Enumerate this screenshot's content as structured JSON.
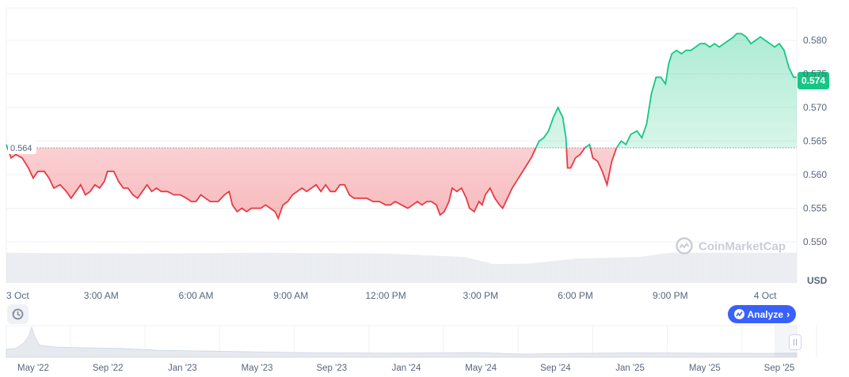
{
  "chart_data": {
    "type": "area",
    "currency": "USD",
    "watermark": "CoinMarketCap",
    "open_price": 0.564,
    "current_price": 0.574,
    "open_label": "0.564",
    "current_label": "0.574",
    "ylim": [
      0.5468,
      0.5816
    ],
    "y_ticks": [
      "0.580",
      "0.575",
      "0.570",
      "0.565",
      "0.560",
      "0.555",
      "0.550"
    ],
    "y_tick_values": [
      0.58,
      0.575,
      0.57,
      0.565,
      0.56,
      0.555,
      0.55
    ],
    "x_ticks": [
      "3 Oct",
      "3:00 AM",
      "6:00 AM",
      "9:00 AM",
      "12:00 PM",
      "3:00 PM",
      "6:00 PM",
      "9:00 PM",
      "4 Oct"
    ],
    "x_tick_hours": [
      0,
      3,
      6,
      9,
      12,
      15,
      18,
      21,
      24
    ],
    "x_range_hours": [
      0,
      25
    ],
    "colors": {
      "up": "#16c784",
      "down": "#ea3943",
      "accent": "#3861fb",
      "volume": "#e6e9ee"
    },
    "series": [
      {
        "values": [
          [
            0.0,
            0.5645
          ],
          [
            0.15,
            0.5625
          ],
          [
            0.3,
            0.563
          ],
          [
            0.5,
            0.5625
          ],
          [
            0.7,
            0.561
          ],
          [
            0.85,
            0.5595
          ],
          [
            1.0,
            0.5605
          ],
          [
            1.2,
            0.5605
          ],
          [
            1.35,
            0.5595
          ],
          [
            1.5,
            0.558
          ],
          [
            1.7,
            0.5585
          ],
          [
            1.9,
            0.5575
          ],
          [
            2.05,
            0.5565
          ],
          [
            2.2,
            0.5575
          ],
          [
            2.35,
            0.5585
          ],
          [
            2.5,
            0.557
          ],
          [
            2.65,
            0.5575
          ],
          [
            2.8,
            0.5585
          ],
          [
            2.95,
            0.558
          ],
          [
            3.1,
            0.559
          ],
          [
            3.2,
            0.5605
          ],
          [
            3.4,
            0.5605
          ],
          [
            3.55,
            0.559
          ],
          [
            3.7,
            0.558
          ],
          [
            3.85,
            0.558
          ],
          [
            4.0,
            0.557
          ],
          [
            4.15,
            0.5565
          ],
          [
            4.3,
            0.5575
          ],
          [
            4.45,
            0.5585
          ],
          [
            4.6,
            0.5575
          ],
          [
            4.75,
            0.558
          ],
          [
            4.9,
            0.5575
          ],
          [
            5.1,
            0.5575
          ],
          [
            5.3,
            0.557
          ],
          [
            5.5,
            0.557
          ],
          [
            5.7,
            0.5565
          ],
          [
            5.85,
            0.556
          ],
          [
            6.0,
            0.556
          ],
          [
            6.15,
            0.557
          ],
          [
            6.3,
            0.5565
          ],
          [
            6.45,
            0.556
          ],
          [
            6.7,
            0.556
          ],
          [
            6.9,
            0.557
          ],
          [
            7.05,
            0.5575
          ],
          [
            7.15,
            0.5555
          ],
          [
            7.3,
            0.5545
          ],
          [
            7.45,
            0.555
          ],
          [
            7.6,
            0.5545
          ],
          [
            7.75,
            0.555
          ],
          [
            7.9,
            0.555
          ],
          [
            8.05,
            0.555
          ],
          [
            8.2,
            0.5555
          ],
          [
            8.35,
            0.555
          ],
          [
            8.5,
            0.5545
          ],
          [
            8.6,
            0.5535
          ],
          [
            8.75,
            0.5555
          ],
          [
            8.9,
            0.556
          ],
          [
            9.05,
            0.557
          ],
          [
            9.2,
            0.5575
          ],
          [
            9.35,
            0.558
          ],
          [
            9.5,
            0.5575
          ],
          [
            9.65,
            0.558
          ],
          [
            9.8,
            0.5585
          ],
          [
            9.95,
            0.5575
          ],
          [
            10.1,
            0.5585
          ],
          [
            10.25,
            0.5575
          ],
          [
            10.4,
            0.5575
          ],
          [
            10.55,
            0.5585
          ],
          [
            10.7,
            0.5585
          ],
          [
            10.85,
            0.557
          ],
          [
            11.0,
            0.5565
          ],
          [
            11.2,
            0.5565
          ],
          [
            11.4,
            0.5565
          ],
          [
            11.6,
            0.556
          ],
          [
            11.8,
            0.556
          ],
          [
            12.0,
            0.5555
          ],
          [
            12.15,
            0.5555
          ],
          [
            12.3,
            0.556
          ],
          [
            12.5,
            0.5555
          ],
          [
            12.7,
            0.555
          ],
          [
            12.85,
            0.5555
          ],
          [
            13.0,
            0.556
          ],
          [
            13.15,
            0.5555
          ],
          [
            13.3,
            0.556
          ],
          [
            13.45,
            0.556
          ],
          [
            13.6,
            0.5555
          ],
          [
            13.72,
            0.554
          ],
          [
            13.85,
            0.5545
          ],
          [
            14.0,
            0.556
          ],
          [
            14.1,
            0.558
          ],
          [
            14.25,
            0.5575
          ],
          [
            14.4,
            0.558
          ],
          [
            14.55,
            0.5565
          ],
          [
            14.65,
            0.555
          ],
          [
            14.8,
            0.5545
          ],
          [
            14.95,
            0.556
          ],
          [
            15.05,
            0.5555
          ],
          [
            15.15,
            0.557
          ],
          [
            15.3,
            0.558
          ],
          [
            15.45,
            0.5565
          ],
          [
            15.6,
            0.5555
          ],
          [
            15.7,
            0.555
          ],
          [
            15.85,
            0.5565
          ],
          [
            16.0,
            0.558
          ],
          [
            16.2,
            0.5595
          ],
          [
            16.4,
            0.561
          ],
          [
            16.6,
            0.5625
          ],
          [
            16.75,
            0.564
          ],
          [
            16.85,
            0.565
          ],
          [
            17.0,
            0.5655
          ],
          [
            17.15,
            0.5665
          ],
          [
            17.3,
            0.5685
          ],
          [
            17.45,
            0.57
          ],
          [
            17.6,
            0.5685
          ],
          [
            17.7,
            0.5655
          ],
          [
            17.75,
            0.561
          ],
          [
            17.85,
            0.561
          ],
          [
            18.0,
            0.5625
          ],
          [
            18.15,
            0.563
          ],
          [
            18.3,
            0.564
          ],
          [
            18.45,
            0.5645
          ],
          [
            18.55,
            0.5625
          ],
          [
            18.7,
            0.562
          ],
          [
            18.85,
            0.5605
          ],
          [
            19.0,
            0.5585
          ],
          [
            19.15,
            0.562
          ],
          [
            19.3,
            0.564
          ],
          [
            19.45,
            0.565
          ],
          [
            19.6,
            0.5645
          ],
          [
            19.75,
            0.566
          ],
          [
            19.95,
            0.5665
          ],
          [
            20.1,
            0.5655
          ],
          [
            20.25,
            0.5675
          ],
          [
            20.4,
            0.572
          ],
          [
            20.55,
            0.5745
          ],
          [
            20.7,
            0.5745
          ],
          [
            20.85,
            0.5735
          ],
          [
            20.95,
            0.5765
          ],
          [
            21.05,
            0.578
          ],
          [
            21.2,
            0.5785
          ],
          [
            21.35,
            0.578
          ],
          [
            21.5,
            0.5785
          ],
          [
            21.65,
            0.5785
          ],
          [
            21.8,
            0.579
          ],
          [
            21.95,
            0.5795
          ],
          [
            22.1,
            0.5795
          ],
          [
            22.25,
            0.579
          ],
          [
            22.4,
            0.5795
          ],
          [
            22.55,
            0.579
          ],
          [
            22.7,
            0.5795
          ],
          [
            22.85,
            0.58
          ],
          [
            23.0,
            0.5805
          ],
          [
            23.1,
            0.581
          ],
          [
            23.25,
            0.581
          ],
          [
            23.4,
            0.5805
          ],
          [
            23.55,
            0.5795
          ],
          [
            23.7,
            0.58
          ],
          [
            23.85,
            0.5805
          ],
          [
            24.0,
            0.58
          ],
          [
            24.15,
            0.5795
          ],
          [
            24.3,
            0.579
          ],
          [
            24.45,
            0.5795
          ],
          [
            24.6,
            0.5785
          ],
          [
            24.75,
            0.576
          ],
          [
            24.9,
            0.5745
          ],
          [
            25.0,
            0.5745
          ]
        ]
      }
    ],
    "volume": [
      [
        0,
        0.72
      ],
      [
        4,
        0.7
      ],
      [
        8,
        0.72
      ],
      [
        12,
        0.7
      ],
      [
        14.5,
        0.62
      ],
      [
        15.4,
        0.45
      ],
      [
        16.5,
        0.46
      ],
      [
        18,
        0.58
      ],
      [
        20,
        0.62
      ],
      [
        21,
        0.72
      ],
      [
        25,
        0.72
      ]
    ],
    "navigator": {
      "ticks": [
        "May '22",
        "Sep '22",
        "Jan '23",
        "May '23",
        "Sep '23",
        "Jan '24",
        "May '24",
        "Sep '24",
        "Jan '25",
        "May '25",
        "Sep '25"
      ]
    }
  },
  "controls": {
    "analyze_label": "Analyze",
    "history_icon": "history-icon",
    "analyze_icon": "analyze-icon",
    "handle_icon": "range-handle-grip-icon"
  }
}
